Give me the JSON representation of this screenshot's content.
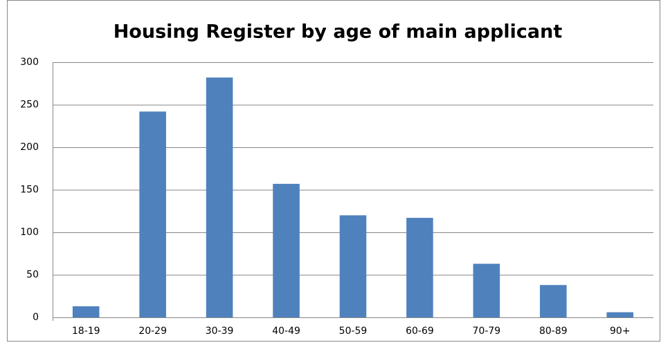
{
  "chart_data": {
    "type": "bar",
    "title": "Housing Register by age of main applicant",
    "categories": [
      "18-19",
      "20-29",
      "30-39",
      "40-49",
      "50-59",
      "60-69",
      "70-79",
      "80-89",
      "90+"
    ],
    "values": [
      13,
      242,
      282,
      157,
      120,
      117,
      63,
      38,
      6
    ],
    "color": "#4f81bd",
    "ylim": [
      0,
      300
    ],
    "yticks": [
      0,
      50,
      100,
      150,
      200,
      250,
      300
    ],
    "grid": true
  }
}
